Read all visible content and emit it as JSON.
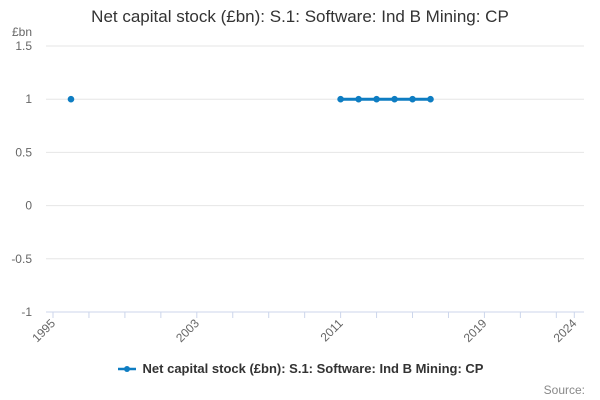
{
  "title": "Net capital stock (£bn): S.1: Software: Ind B Mining: CP",
  "y_axis": {
    "unit_label": "£bn"
  },
  "legend": {
    "label": "Net capital stock (£bn): S.1: Software: Ind B Mining: CP"
  },
  "credits": {
    "label": "Source:"
  },
  "colors": {
    "series": "#0e7dc2",
    "grid": "#e6e6e6",
    "axis": "#ccd6eb",
    "tick_label": "#666666",
    "title": "#333333",
    "legend_text": "#333333",
    "credits": "#888888",
    "background": "#ffffff"
  },
  "chart_data": {
    "type": "line",
    "title": "Net capital stock (£bn): S.1: Software: Ind B Mining: CP",
    "xlabel": "",
    "ylabel": "£bn",
    "ylim": [
      -1,
      1.5
    ],
    "y_ticks": [
      1.5,
      1,
      0.5,
      0,
      -0.5,
      -1
    ],
    "xlim": [
      1995,
      2024
    ],
    "x_ticks": [
      1995,
      1997,
      1999,
      2001,
      2003,
      2005,
      2007,
      2009,
      2011,
      2013,
      2015,
      2017,
      2019,
      2021,
      2023,
      2024
    ],
    "x_labeled_ticks": [
      1995,
      2003,
      2011,
      2019,
      2024
    ],
    "grid": true,
    "legend_position": "bottom",
    "series": [
      {
        "name": "Net capital stock (£bn): S.1: Software: Ind B Mining: CP",
        "color": "#0e7dc2",
        "points": [
          {
            "x": 1996,
            "y": 1
          },
          {
            "x": 2011,
            "y": 1
          },
          {
            "x": 2012,
            "y": 1
          },
          {
            "x": 2013,
            "y": 1
          },
          {
            "x": 2014,
            "y": 1
          },
          {
            "x": 2015,
            "y": 1
          },
          {
            "x": 2016,
            "y": 1
          }
        ]
      }
    ]
  }
}
